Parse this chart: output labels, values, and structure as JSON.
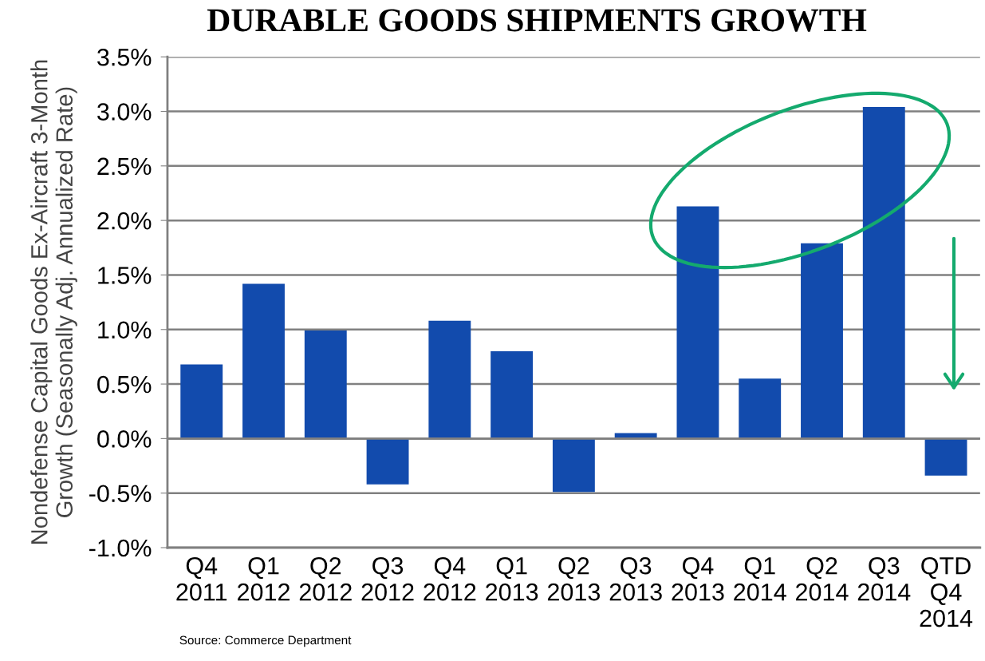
{
  "chart_data": {
    "type": "bar",
    "title": "DURABLE GOODS SHIPMENTS GROWTH",
    "ylabel": "Nondefense Capital Goods Ex-Aircraft 3-Month\nGrowth (Seasonally Adj. Annualized Rate)",
    "categories": [
      "Q4\n2011",
      "Q1\n2012",
      "Q2\n2012",
      "Q3\n2012",
      "Q4\n2012",
      "Q1\n2013",
      "Q2\n2013",
      "Q3\n2013",
      "Q4\n2013",
      "Q1\n2014",
      "Q2\n2014",
      "Q3\n2014",
      "QTD\nQ4\n2014"
    ],
    "values": [
      0.68,
      1.42,
      0.99,
      -0.42,
      1.08,
      0.8,
      -0.49,
      0.05,
      2.13,
      0.55,
      1.79,
      3.04,
      -0.34
    ],
    "color": "#124bad",
    "ylim": [
      -1.0,
      3.5
    ],
    "yticks": [
      {
        "value": -1.0,
        "label": "-1.0%"
      },
      {
        "value": -0.5,
        "label": "-0.5%"
      },
      {
        "value": 0.0,
        "label": "0.0%"
      },
      {
        "value": 0.5,
        "label": "0.5%"
      },
      {
        "value": 1.0,
        "label": "1.0%"
      },
      {
        "value": 1.5,
        "label": "1.5%"
      },
      {
        "value": 2.0,
        "label": "2.0%"
      },
      {
        "value": 2.5,
        "label": "2.5%"
      },
      {
        "value": 3.0,
        "label": "3.0%"
      },
      {
        "value": 3.5,
        "label": "3.5%"
      }
    ],
    "grid": "y",
    "annotations": [
      "Source: Commerce Department"
    ]
  }
}
